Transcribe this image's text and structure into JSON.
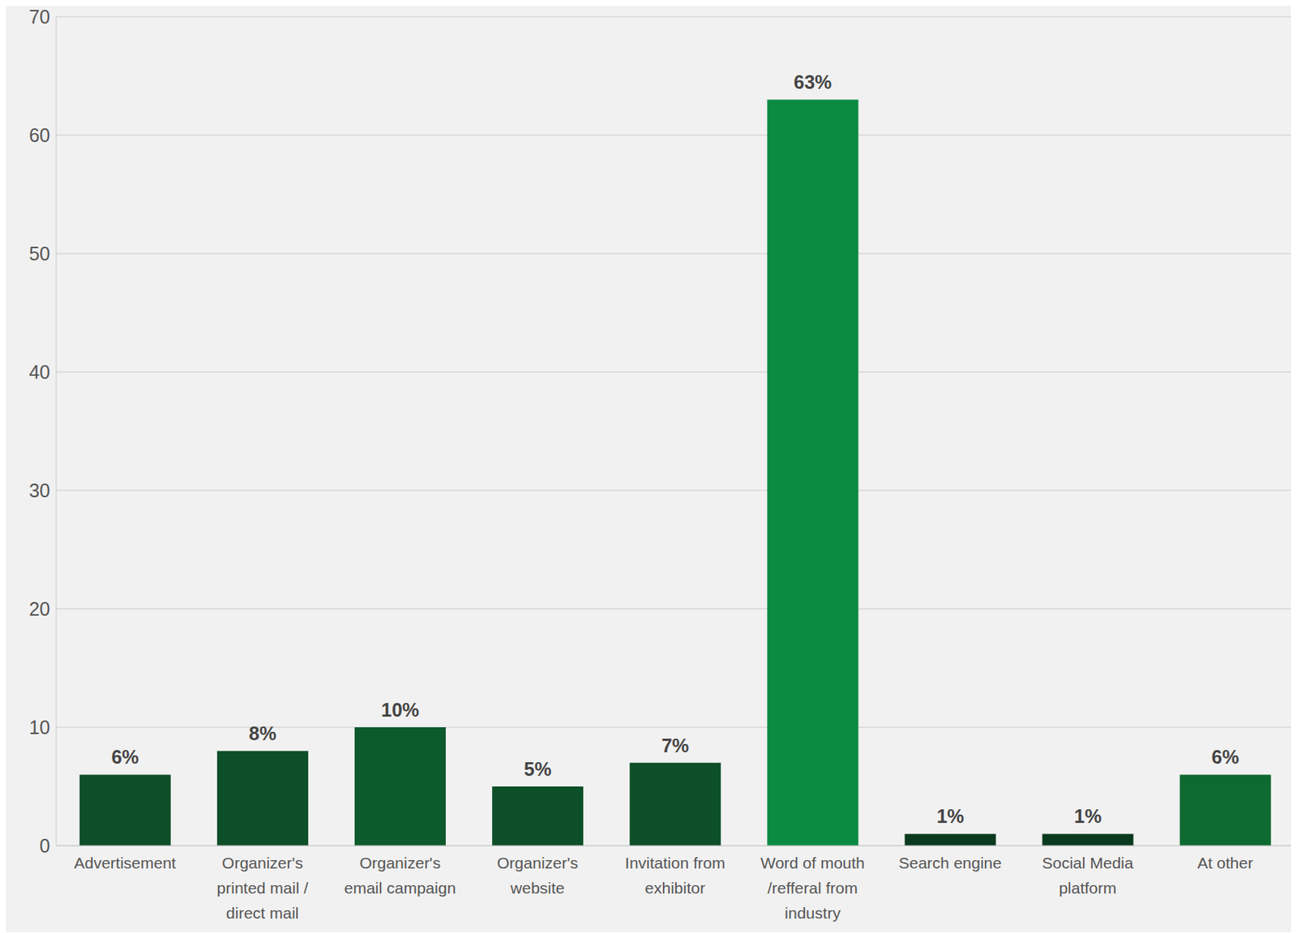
{
  "chart_data": {
    "type": "bar",
    "categories": [
      "Advertisement",
      "Organizer's printed mail / direct mail",
      "Organizer's email campaign",
      "Organizer's website",
      "Invitation from exhibitor",
      "Word of mouth /refferal from industry",
      "Search engine",
      "Social Media platform",
      "At other"
    ],
    "values": [
      6,
      8,
      10,
      5,
      7,
      63,
      1,
      1,
      6
    ],
    "value_labels": [
      "6%",
      "8%",
      "10%",
      "5%",
      "7%",
      "63%",
      "1%",
      "1%",
      "6%"
    ],
    "colors": [
      "#0d4f28",
      "#0d4f28",
      "#0d5a2d",
      "#0d4f28",
      "#0d4f28",
      "#0b8a44",
      "#0a3a1d",
      "#0a3a1d",
      "#0d6a30"
    ],
    "ylim": [
      0,
      70
    ],
    "yticks": [
      0,
      10,
      20,
      30,
      40,
      50,
      60,
      70
    ],
    "grid": true,
    "data_labels": true
  }
}
